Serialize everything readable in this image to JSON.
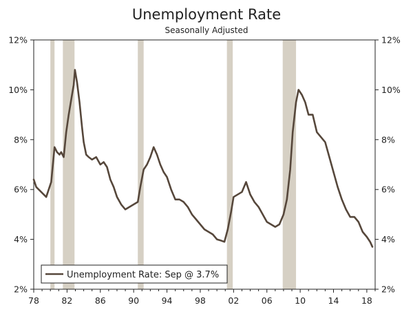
{
  "chart_data": {
    "type": "line",
    "title": "Unemployment Rate",
    "subtitle": "Seasonally Adjusted",
    "xlabel": "",
    "ylabel": "",
    "xlim": [
      1978,
      2019
    ],
    "ylim": [
      2,
      12
    ],
    "x_tick_labels": [
      "78",
      "82",
      "86",
      "90",
      "94",
      "98",
      "02",
      "06",
      "10",
      "14",
      "18"
    ],
    "x_ticks": [
      1978,
      1982,
      1986,
      1990,
      1994,
      1998,
      2002,
      2006,
      2010,
      2014,
      2018
    ],
    "y_tick_labels_left": [
      "2%",
      "4%",
      "6%",
      "8%",
      "10%",
      "12%"
    ],
    "y_tick_labels_right": [
      "2%",
      "4%",
      "6%",
      "8%",
      "10%",
      "12%"
    ],
    "y_ticks": [
      2,
      4,
      6,
      8,
      10,
      12
    ],
    "grid": false,
    "legend_position": "bottom-left",
    "recessions": [
      {
        "start": 1980.0,
        "end": 1980.5
      },
      {
        "start": 1981.5,
        "end": 1982.9
      },
      {
        "start": 1990.5,
        "end": 1991.2
      },
      {
        "start": 2001.2,
        "end": 2001.9
      },
      {
        "start": 2007.9,
        "end": 2009.5
      }
    ],
    "colors": {
      "line": "#56473b",
      "recession": "#d6d0c4",
      "axis": "#222222"
    },
    "series": [
      {
        "name": "Unemployment Rate: Sep @ 3.7%",
        "points": [
          [
            1978.0,
            6.4
          ],
          [
            1978.3,
            6.1
          ],
          [
            1978.6,
            6.0
          ],
          [
            1978.9,
            5.9
          ],
          [
            1979.2,
            5.8
          ],
          [
            1979.5,
            5.7
          ],
          [
            1979.8,
            6.0
          ],
          [
            1980.1,
            6.3
          ],
          [
            1980.3,
            7.0
          ],
          [
            1980.5,
            7.7
          ],
          [
            1980.8,
            7.5
          ],
          [
            1981.1,
            7.4
          ],
          [
            1981.3,
            7.5
          ],
          [
            1981.6,
            7.3
          ],
          [
            1981.9,
            8.3
          ],
          [
            1982.2,
            9.0
          ],
          [
            1982.5,
            9.6
          ],
          [
            1982.8,
            10.2
          ],
          [
            1982.95,
            10.8
          ],
          [
            1983.2,
            10.3
          ],
          [
            1983.5,
            9.5
          ],
          [
            1983.8,
            8.5
          ],
          [
            1984.0,
            7.9
          ],
          [
            1984.3,
            7.4
          ],
          [
            1984.6,
            7.3
          ],
          [
            1985.0,
            7.2
          ],
          [
            1985.5,
            7.3
          ],
          [
            1986.0,
            7.0
          ],
          [
            1986.4,
            7.1
          ],
          [
            1986.8,
            6.9
          ],
          [
            1987.2,
            6.4
          ],
          [
            1987.6,
            6.1
          ],
          [
            1988.0,
            5.7
          ],
          [
            1988.5,
            5.4
          ],
          [
            1989.0,
            5.2
          ],
          [
            1989.5,
            5.3
          ],
          [
            1990.0,
            5.4
          ],
          [
            1990.5,
            5.5
          ],
          [
            1990.8,
            6.1
          ],
          [
            1991.2,
            6.8
          ],
          [
            1991.6,
            7.0
          ],
          [
            1992.0,
            7.3
          ],
          [
            1992.4,
            7.7
          ],
          [
            1992.8,
            7.4
          ],
          [
            1993.2,
            7.0
          ],
          [
            1993.6,
            6.7
          ],
          [
            1994.0,
            6.5
          ],
          [
            1994.5,
            6.0
          ],
          [
            1995.0,
            5.6
          ],
          [
            1995.5,
            5.6
          ],
          [
            1996.0,
            5.5
          ],
          [
            1996.5,
            5.3
          ],
          [
            1997.0,
            5.0
          ],
          [
            1997.5,
            4.8
          ],
          [
            1998.0,
            4.6
          ],
          [
            1998.5,
            4.4
          ],
          [
            1999.0,
            4.3
          ],
          [
            1999.5,
            4.2
          ],
          [
            2000.0,
            4.0
          ],
          [
            2000.5,
            3.95
          ],
          [
            2000.9,
            3.9
          ],
          [
            2001.3,
            4.4
          ],
          [
            2001.7,
            5.1
          ],
          [
            2002.0,
            5.7
          ],
          [
            2002.5,
            5.8
          ],
          [
            2003.0,
            5.9
          ],
          [
            2003.5,
            6.3
          ],
          [
            2004.0,
            5.8
          ],
          [
            2004.5,
            5.5
          ],
          [
            2005.0,
            5.3
          ],
          [
            2005.5,
            5.0
          ],
          [
            2006.0,
            4.7
          ],
          [
            2006.5,
            4.6
          ],
          [
            2007.0,
            4.5
          ],
          [
            2007.5,
            4.6
          ],
          [
            2008.0,
            5.0
          ],
          [
            2008.4,
            5.6
          ],
          [
            2008.8,
            6.8
          ],
          [
            2009.1,
            8.3
          ],
          [
            2009.5,
            9.5
          ],
          [
            2009.8,
            10.0
          ],
          [
            2010.2,
            9.8
          ],
          [
            2010.6,
            9.5
          ],
          [
            2011.0,
            9.0
          ],
          [
            2011.5,
            9.0
          ],
          [
            2012.0,
            8.3
          ],
          [
            2012.5,
            8.1
          ],
          [
            2013.0,
            7.9
          ],
          [
            2013.5,
            7.3
          ],
          [
            2014.0,
            6.7
          ],
          [
            2014.5,
            6.1
          ],
          [
            2015.0,
            5.6
          ],
          [
            2015.5,
            5.2
          ],
          [
            2016.0,
            4.9
          ],
          [
            2016.5,
            4.9
          ],
          [
            2017.0,
            4.7
          ],
          [
            2017.5,
            4.3
          ],
          [
            2018.0,
            4.1
          ],
          [
            2018.4,
            3.9
          ],
          [
            2018.67,
            3.7
          ]
        ]
      }
    ]
  }
}
